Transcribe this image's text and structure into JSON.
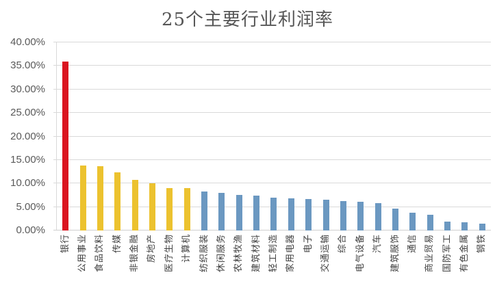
{
  "background": "#FFFFFF",
  "chart_data": {
    "type": "bar",
    "title": "25个主要行业利润率",
    "xlabel": "",
    "ylabel": "",
    "ylim": [
      0,
      40
    ],
    "grid": "horizontal",
    "legend": "none",
    "gridline_color": "#D9D9D9",
    "axis_label_color": "#595959",
    "category_label_color": "#3F3F3F",
    "title_color": "#565656",
    "categories": [
      "银行",
      "公用事业",
      "食品饮料",
      "传媒",
      "非银金融",
      "房地产",
      "医疗生物",
      "计算机",
      "纺织服装",
      "休闲服务",
      "农林牧渔",
      "建筑材料",
      "轻工制造",
      "家用电器",
      "电子",
      "交通运输",
      "综合",
      "电气设备",
      "汽车",
      "建筑服饰",
      "通信",
      "商业贸易",
      "国防军工",
      "有色金属",
      "钢铁"
    ],
    "values": [
      36.0,
      13.8,
      13.7,
      12.3,
      10.8,
      10.0,
      9.0,
      9.0,
      8.3,
      8.0,
      7.6,
      7.4,
      7.0,
      6.9,
      6.7,
      6.5,
      6.2,
      6.1,
      5.8,
      4.6,
      3.8,
      3.4,
      1.9,
      1.7,
      1.5
    ],
    "bar_colors": [
      "#DA1520",
      "#ECC22F",
      "#ECC22F",
      "#ECC22F",
      "#ECC22F",
      "#ECC22F",
      "#ECC22F",
      "#ECC22F",
      "#6B98C1",
      "#6B98C1",
      "#6B98C1",
      "#6B98C1",
      "#6B98C1",
      "#6B98C1",
      "#6B98C1",
      "#6B98C1",
      "#6B98C1",
      "#6B98C1",
      "#6B98C1",
      "#6B98C1",
      "#6B98C1",
      "#6B98C1",
      "#6B98C1",
      "#6B98C1",
      "#6B98C1"
    ],
    "color_legend": {
      "red": "#DA1520",
      "gold": "#ECC22F",
      "blue": "#6B98C1"
    },
    "y_ticks": [
      {
        "value": 0,
        "label": "0.00%"
      },
      {
        "value": 5,
        "label": "5.00%"
      },
      {
        "value": 10,
        "label": "10.00%"
      },
      {
        "value": 15,
        "label": "15.00%"
      },
      {
        "value": 20,
        "label": "20.00%"
      },
      {
        "value": 25,
        "label": "25.00%"
      },
      {
        "value": 30,
        "label": "30.00%"
      },
      {
        "value": 35,
        "label": "35.00%"
      },
      {
        "value": 40,
        "label": "40.00%"
      }
    ]
  }
}
